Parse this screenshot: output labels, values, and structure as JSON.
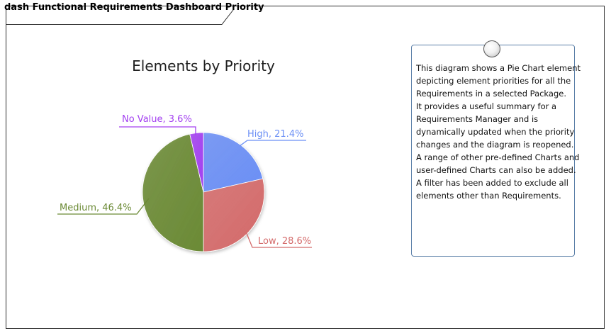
{
  "diagram": {
    "frame_title": "dash Functional Requirements Dashboard Priority"
  },
  "chart_data": {
    "type": "pie",
    "title": "Elements by Priority",
    "slices": [
      {
        "label": "High",
        "value": 21.4,
        "display": "High, 21.4%",
        "color": "#6b8ff5"
      },
      {
        "label": "Low",
        "value": 28.6,
        "display": "Low, 28.6%",
        "color": "#d46a6a"
      },
      {
        "label": "Medium",
        "value": 46.4,
        "display": "Medium, 46.4%",
        "color": "#6b8a35"
      },
      {
        "label": "No Value",
        "value": 3.6,
        "display": "No Value, 3.6%",
        "color": "#a340f0"
      }
    ]
  },
  "note": {
    "lines": [
      "This diagram shows a Pie Chart element",
      "depicting element priorities for all the",
      "Requirements in a selected Package.",
      "It provides a useful summary for a",
      "Requirements Manager and is",
      "dynamically updated when the priority",
      "changes and the diagram is reopened.",
      "A range of other pre-defined Charts and",
      "user-defined Charts can also be added.",
      "A filter has been added to exclude all",
      "elements other than Requirements."
    ]
  }
}
